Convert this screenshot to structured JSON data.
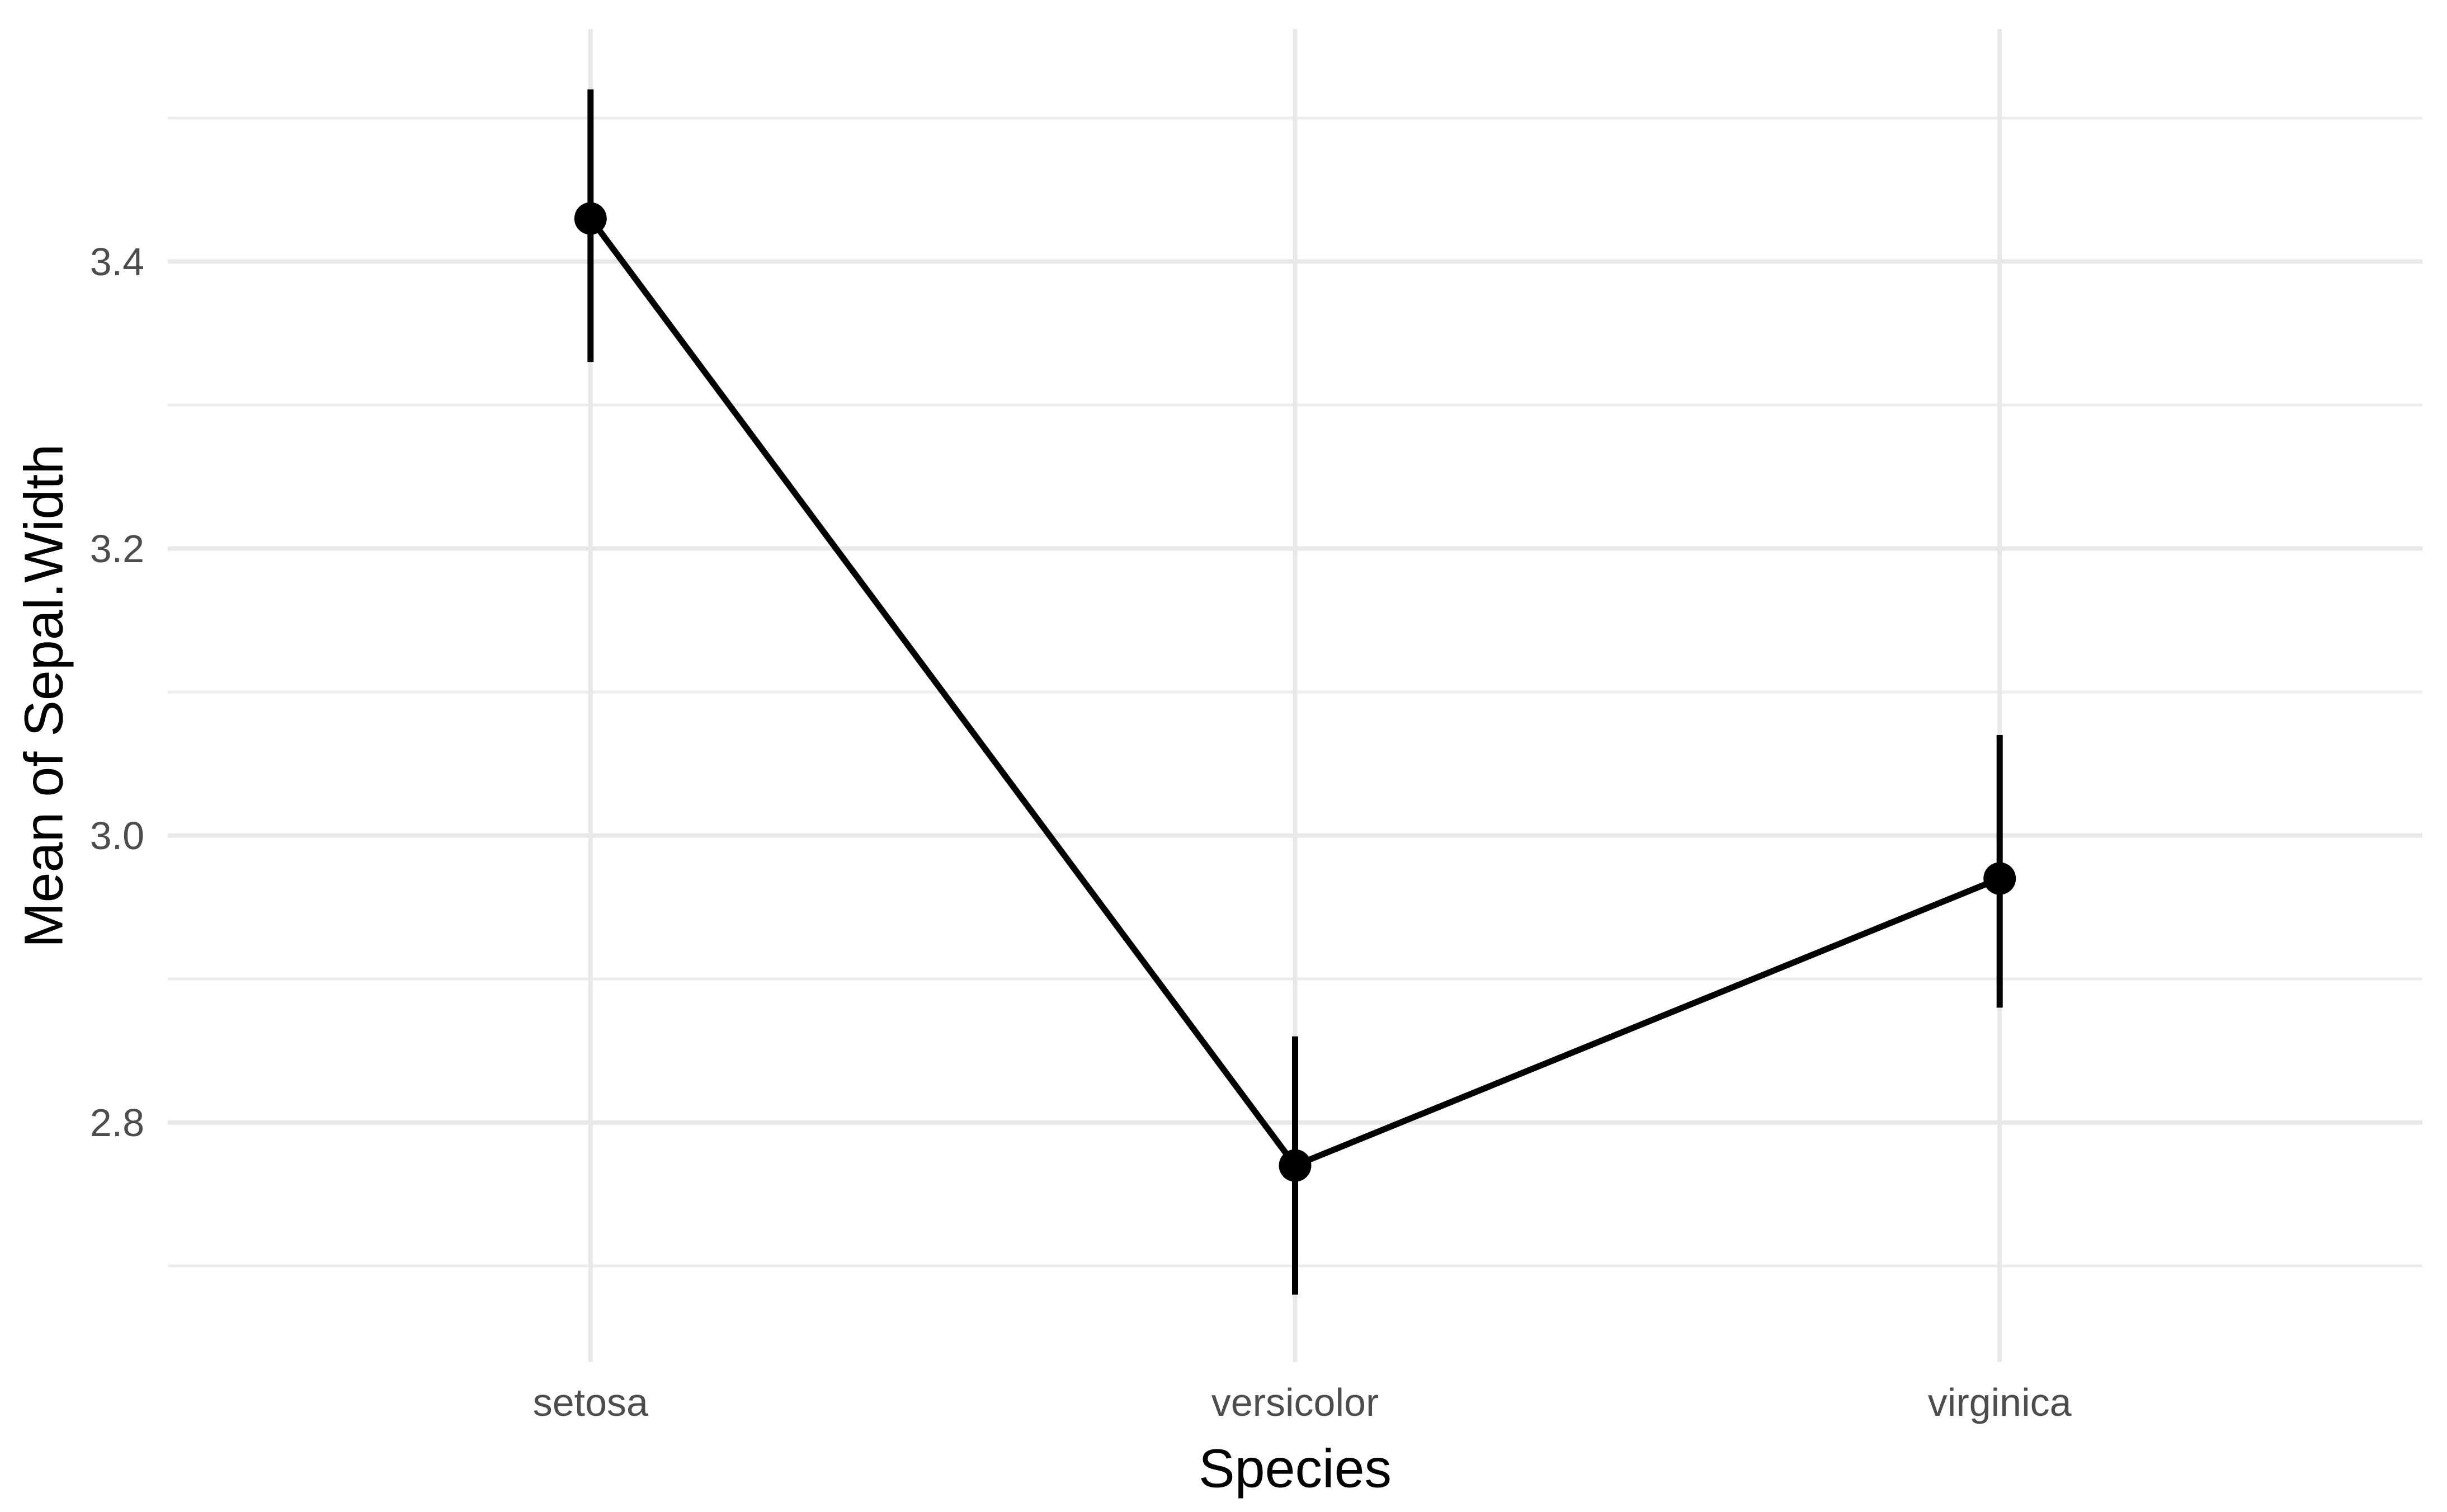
{
  "chart_data": {
    "type": "line",
    "title": "",
    "xlabel": "Species",
    "ylabel": "Mean of Sepal.Width",
    "categories": [
      "setosa",
      "versicolor",
      "virginica"
    ],
    "series": [
      {
        "name": "mean-sepal-width",
        "values": [
          3.43,
          2.77,
          2.97
        ],
        "ci_low": [
          3.33,
          2.68,
          2.88
        ],
        "ci_high": [
          3.52,
          2.86,
          3.07
        ]
      }
    ],
    "y_axis": {
      "tick_labels": [
        "2.8",
        "3.0",
        "3.2",
        "3.4"
      ],
      "minor_ticks": [
        2.7,
        2.9,
        3.1,
        3.3,
        3.5
      ],
      "range": [
        2.633,
        3.562
      ]
    },
    "x_axis": {
      "type": "categorical"
    },
    "grid": {
      "show": true,
      "horizontal_major": true,
      "horizontal_minor": true,
      "vertical_major": true,
      "vertical_minor": false
    },
    "legend": "none",
    "style": {
      "background": "#ffffff",
      "grid_major_color": "#e8e8e8",
      "grid_minor_color": "#ececec",
      "data_color": "#000000",
      "tick_label_color": "#4d4d4d",
      "axis_title_color": "#000000"
    }
  }
}
